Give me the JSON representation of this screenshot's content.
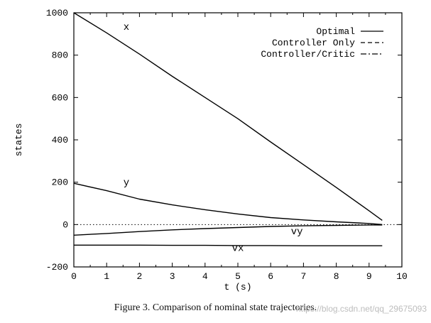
{
  "chart_data": {
    "type": "line",
    "ylabel": "states",
    "xlabel": "t (s)",
    "xlim": [
      0,
      10
    ],
    "ylim": [
      -200,
      1000
    ],
    "x_ticks": [
      0,
      1,
      2,
      3,
      4,
      5,
      6,
      7,
      8,
      9,
      10
    ],
    "y_ticks": [
      -200,
      0,
      200,
      400,
      600,
      800,
      1000
    ],
    "legend": {
      "placement": "top-right",
      "entries": [
        {
          "label": "Optimal",
          "style": "solid"
        },
        {
          "label": "Controller Only",
          "style": "dashed"
        },
        {
          "label": "Controller/Critic",
          "style": "dashdot"
        }
      ]
    },
    "series": [
      {
        "name": "x",
        "label_at": [
          1.6,
          920
        ],
        "x": [
          0,
          1,
          2,
          3,
          4,
          5,
          6,
          7,
          8,
          9,
          9.4
        ],
        "y": [
          1000,
          905,
          805,
          700,
          600,
          500,
          390,
          283,
          175,
          65,
          20
        ]
      },
      {
        "name": "y",
        "label_at": [
          1.6,
          185
        ],
        "x": [
          0,
          1,
          2,
          3,
          4,
          5,
          6,
          7,
          8,
          9,
          9.4
        ],
        "y": [
          195,
          160,
          120,
          93,
          70,
          50,
          33,
          22,
          13,
          5,
          0
        ]
      },
      {
        "name": "vy",
        "label_at": [
          6.8,
          -45
        ],
        "x": [
          0,
          1,
          2,
          3,
          4,
          5,
          6,
          7,
          8,
          9,
          9.4
        ],
        "y": [
          -50,
          -42,
          -33,
          -25,
          -19,
          -14,
          -9,
          -6,
          -4,
          -2,
          -2
        ]
      },
      {
        "name": "vx",
        "label_at": [
          5.0,
          -125
        ],
        "x": [
          0,
          1,
          2,
          3,
          4,
          5,
          6,
          7,
          8,
          9,
          9.4
        ],
        "y": [
          -97,
          -97,
          -97,
          -98,
          -98,
          -99,
          -99,
          -100,
          -100,
          -100,
          -100
        ]
      }
    ],
    "reference_line": {
      "y": 0,
      "style": "dotted"
    }
  },
  "caption": "Figure 3. Comparison of nominal state trajectories.",
  "watermark": "https://blog.csdn.net/qq_29675093"
}
